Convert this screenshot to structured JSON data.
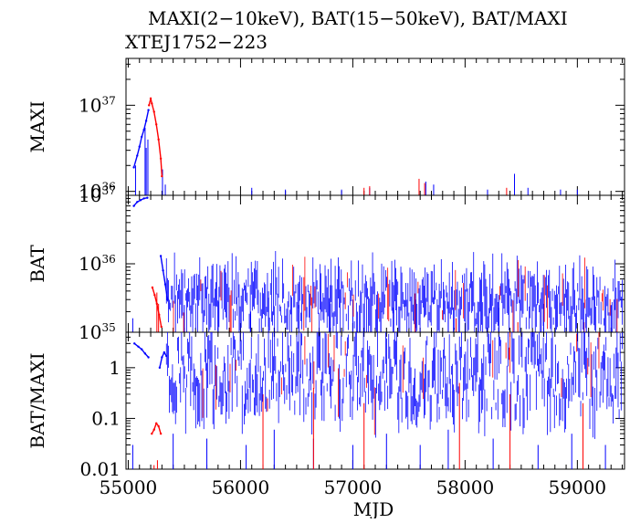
{
  "title": "MAXI(2−10keV), BAT(15−50keV), BAT/MAXI",
  "subtitle": "XTEJ1752−223",
  "colors": {
    "blue": "#0000ff",
    "red": "#ff0000",
    "axis": "#000000"
  },
  "chart_data": [
    {
      "type": "line",
      "panel": "maxi",
      "ylabel": "MAXI",
      "scale": "log",
      "ylim": [
        9e+35,
        3.5e+37
      ],
      "xlim": [
        54980,
        59420
      ],
      "yticks": [
        {
          "label_base": "10",
          "label_exp": "36",
          "value": 1e+36
        },
        {
          "label_base": "10",
          "label_exp": "37",
          "value": 1e+37
        }
      ],
      "series": [
        {
          "color": "blue",
          "segments": [
            {
              "x": [
                55050,
                55080,
                55100,
                55120,
                55140,
                55160,
                55180
              ],
              "y": [
                1.9e+36,
                2.6e+36,
                3.3e+36,
                4.3e+36,
                5.2e+36,
                6.6e+36,
                8.8e+36
              ]
            }
          ],
          "spikes": [
            [
              55065,
              2e+36
            ],
            [
              55150,
              5.5e+36
            ],
            [
              55160,
              3.2e+36
            ],
            [
              55175,
              4e+36
            ],
            [
              55305,
              1.8e+36
            ],
            [
              55330,
              1.2e+36
            ],
            [
              56100,
              1.1e+36
            ],
            [
              56400,
              1.05e+36
            ],
            [
              56900,
              1.05e+36
            ],
            [
              57150,
              1.1e+36
            ],
            [
              57650,
              1.3e+36
            ],
            [
              57720,
              1.2e+36
            ],
            [
              58200,
              1.05e+36
            ],
            [
              58440,
              1.6e+36
            ],
            [
              58560,
              1.1e+36
            ],
            [
              58850,
              1.05e+36
            ],
            [
              59000,
              1.05e+36
            ]
          ]
        },
        {
          "color": "red",
          "segments": [
            {
              "x": [
                55185,
                55200,
                55210,
                55230,
                55250,
                55270,
                55290,
                55300
              ],
              "y": [
                1e+37,
                1.2e+37,
                1.05e+37,
                8.4e+36,
                6e+36,
                4e+36,
                2.4e+36,
                1.5e+36
              ]
            }
          ],
          "spikes": [
            [
              57100,
              1.1e+36
            ],
            [
              57150,
              1.15e+36
            ],
            [
              57590,
              1.4e+36
            ],
            [
              57640,
              1.25e+36
            ],
            [
              58370,
              1.1e+36
            ]
          ]
        }
      ]
    },
    {
      "type": "line",
      "panel": "bat",
      "ylabel": "BAT",
      "scale": "log",
      "ylim": [
        1e+35,
        1e+37
      ],
      "xlim": [
        54980,
        59420
      ],
      "yticks": [
        {
          "label_base": "10",
          "label_exp": "35",
          "value": 1e+35
        },
        {
          "label_base": "10",
          "label_exp": "36",
          "value": 1e+36
        },
        {
          "label_base": "10",
          "label_exp": "37",
          "value": 1e+37
        }
      ],
      "series": [
        {
          "color": "blue",
          "segments": [
            {
              "x": [
                55050,
                55080,
                55110,
                55140,
                55170
              ],
              "y": [
                7e+36,
                8e+36,
                8.5e+36,
                9e+36,
                9.2e+36
              ]
            },
            {
              "x": [
                55290,
                55310,
                55330,
                55350
              ],
              "y": [
                1.3e+36,
                8e+35,
                5e+35,
                3e+35
              ]
            }
          ],
          "spikes": [
            [
              55040,
              1.6e+35
            ],
            [
              55500,
              2.5e+35
            ],
            [
              55800,
              2.8e+35
            ],
            [
              56090,
              2e+35
            ],
            [
              56250,
              3.2e+35
            ],
            [
              56520,
              2.5e+35
            ],
            [
              56800,
              2.6e+35
            ],
            [
              57000,
              3e+35
            ],
            [
              57250,
              2e+35
            ],
            [
              57360,
              2.3e+35
            ],
            [
              57560,
              3e+35
            ],
            [
              57850,
              2.8e+35
            ],
            [
              58300,
              3.5e+35
            ],
            [
              58700,
              2.6e+35
            ],
            [
              59080,
              3e+35
            ],
            [
              59300,
              2.5e+35
            ]
          ]
        },
        {
          "color": "red",
          "segments": [
            {
              "x": [
                55215,
                55235,
                55255,
                55275,
                55295
              ],
              "y": [
                4.5e+35,
                3.5e+35,
                2.6e+35,
                1.8e+35,
                1.2e+35
              ]
            }
          ],
          "spikes": [
            [
              55255,
              3.8e+35
            ],
            [
              55270,
              2.6e+35
            ],
            [
              57920,
              1.6e+35
            ],
            [
              58470,
              1.4e+35
            ],
            [
              59060,
              1.4e+35
            ]
          ]
        }
      ]
    },
    {
      "type": "line",
      "panel": "ratio",
      "ylabel": "BAT/MAXI",
      "xlabel": "MJD",
      "scale": "log",
      "ylim": [
        0.01,
        5.0
      ],
      "xlim": [
        54980,
        59420
      ],
      "yticks": [
        {
          "label": "0.01",
          "value": 0.01
        },
        {
          "label": "0.1",
          "value": 0.1
        },
        {
          "label": "1",
          "value": 1
        }
      ],
      "xticks": [
        {
          "label": "55000",
          "value": 55000
        },
        {
          "label": "56000",
          "value": 56000
        },
        {
          "label": "57000",
          "value": 57000
        },
        {
          "label": "58000",
          "value": 58000
        },
        {
          "label": "59000",
          "value": 59000
        }
      ],
      "series": [
        {
          "color": "blue",
          "segments": [
            {
              "x": [
                55055,
                55090,
                55120,
                55150,
                55180
              ],
              "y": [
                3.0,
                2.6,
                2.3,
                1.9,
                1.6
              ]
            },
            {
              "x": [
                55280,
                55300,
                55320,
                55340
              ],
              "y": [
                1.0,
                1.6,
                2.0,
                1.7
              ]
            }
          ],
          "spikes": [
            [
              55040,
              0.03
            ],
            [
              55400,
              0.05
            ],
            [
              55700,
              0.04
            ],
            [
              56050,
              0.03
            ],
            [
              56300,
              0.06
            ],
            [
              56650,
              0.04
            ],
            [
              57000,
              0.03
            ],
            [
              57300,
              0.05
            ],
            [
              57600,
              0.03
            ],
            [
              57850,
              0.06
            ],
            [
              58250,
              0.04
            ],
            [
              58650,
              0.03
            ],
            [
              58950,
              0.05
            ],
            [
              59250,
              0.03
            ]
          ]
        },
        {
          "color": "red",
          "segments": [
            {
              "x": [
                55210,
                55230,
                55250,
                55270,
                55290
              ],
              "y": [
                0.05,
                0.06,
                0.08,
                0.07,
                0.05
              ]
            }
          ],
          "spikes": [
            [
              55230,
              0.012
            ],
            [
              55260,
              0.015
            ],
            [
              56200,
              0.3
            ],
            [
              56650,
              0.4
            ],
            [
              57100,
              0.2
            ],
            [
              57950,
              0.5
            ],
            [
              58400,
              0.3
            ],
            [
              59050,
              0.2
            ]
          ]
        }
      ]
    }
  ]
}
